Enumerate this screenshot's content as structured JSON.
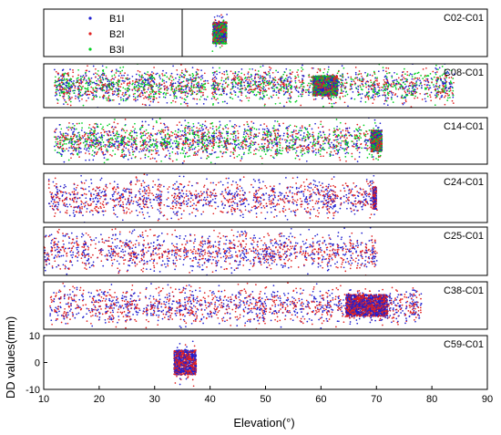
{
  "chart_data": {
    "type": "scatter",
    "xlabel": "Elevation(°)",
    "ylabel": "DD values(mm)",
    "xlim": [
      10,
      90
    ],
    "xticks": [
      "10",
      "20",
      "30",
      "40",
      "50",
      "60",
      "70",
      "80",
      "90"
    ],
    "ylim_bottom_panel": [
      -10,
      10
    ],
    "yticks_bottom_panel": [
      "10",
      "0",
      "-10"
    ],
    "legend": {
      "placement": "top-left of first panel",
      "entries": [
        "B1I",
        "B2I",
        "B3I"
      ]
    },
    "series_colors": {
      "B1I": "#1f1fd0",
      "B2I": "#e02020",
      "B3I": "#00d020"
    },
    "panels": [
      {
        "label": "C02-C01",
        "visible_signals": [
          "B1I",
          "B2I",
          "B3I"
        ],
        "elevation_range": [
          40.5,
          43
        ],
        "dense_cluster": [
          40.5,
          43
        ],
        "spread_mm": 4
      },
      {
        "label": "C08-C01",
        "visible_signals": [
          "B1I",
          "B2I",
          "B3I"
        ],
        "elevation_range": [
          12,
          84
        ],
        "dense_cluster": [
          58.5,
          63
        ],
        "spread_mm": 6
      },
      {
        "label": "C14-C01",
        "visible_signals": [
          "B1I",
          "B2I",
          "B3I"
        ],
        "elevation_range": [
          12,
          71
        ],
        "dense_cluster": [
          69,
          71
        ],
        "spread_mm": 5
      },
      {
        "label": "C24-C01",
        "visible_signals": [
          "B1I",
          "B2I"
        ],
        "elevation_range": [
          11,
          70
        ],
        "dense_cluster": [
          69.3,
          70
        ],
        "spread_mm": 5
      },
      {
        "label": "C25-C01",
        "visible_signals": [
          "B1I",
          "B2I"
        ],
        "elevation_range": [
          10,
          70
        ],
        "dense_cluster": null,
        "spread_mm": 5
      },
      {
        "label": "C38-C01",
        "visible_signals": [
          "B1I",
          "B2I"
        ],
        "elevation_range": [
          11,
          78
        ],
        "dense_cluster": [
          64.5,
          72
        ],
        "spread_mm": 5
      },
      {
        "label": "C59-C01",
        "visible_signals": [
          "B1I",
          "B2I"
        ],
        "elevation_range": [
          33.5,
          37.5
        ],
        "dense_cluster": [
          33.5,
          37.5
        ],
        "spread_mm": 6
      }
    ]
  }
}
